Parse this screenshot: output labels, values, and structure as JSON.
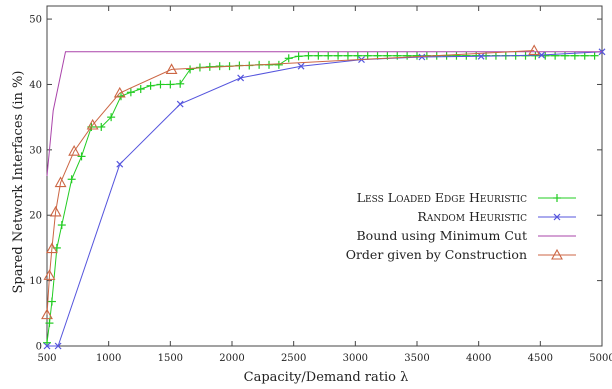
{
  "chart_data": {
    "type": "line",
    "title": "",
    "xlabel": "Capacity/Demand ratio λ",
    "ylabel": "Spared Network Interfaces (in %)",
    "xlim": [
      500,
      5000
    ],
    "ylim": [
      0,
      52
    ],
    "xticks": [
      500,
      1000,
      1500,
      2000,
      2500,
      3000,
      3500,
      4000,
      4500,
      5000
    ],
    "yticks": [
      0,
      10,
      20,
      30,
      40,
      50
    ],
    "grid": false,
    "legend_position": "right",
    "series": [
      {
        "name": "Less Loaded Edge Heuristic",
        "color": "#22cc22",
        "marker": "plus",
        "x": [
          500,
          520,
          540,
          580,
          620,
          700,
          780,
          860,
          940,
          1020,
          1100,
          1180,
          1260,
          1340,
          1420,
          1500,
          1580,
          1660,
          1740,
          1820,
          1900,
          1980,
          2060,
          2140,
          2220,
          2300,
          2380,
          2460,
          2540,
          2620,
          2700,
          2780,
          2860,
          2940,
          3020,
          3100,
          3180,
          3260,
          3340,
          3420,
          3500,
          3580,
          3660,
          3740,
          3820,
          3900,
          3980,
          4060,
          4140,
          4220,
          4300,
          4380,
          4460,
          4540,
          4620,
          4700,
          4780,
          4860,
          4940
        ],
        "values": [
          0.5,
          3.5,
          6.8,
          15,
          18.5,
          25.5,
          29,
          33.5,
          33.5,
          35,
          38.2,
          38.8,
          39.3,
          39.8,
          40,
          40,
          40.1,
          42.3,
          42.6,
          42.7,
          42.8,
          42.8,
          42.9,
          42.9,
          43,
          43,
          43,
          44,
          44.3,
          44.4,
          44.4,
          44.4,
          44.4,
          44.4,
          44.4,
          44.4,
          44.4,
          44.4,
          44.4,
          44.4,
          44.4,
          44.4,
          44.4,
          44.4,
          44.4,
          44.4,
          44.4,
          44.4,
          44.4,
          44.4,
          44.4,
          44.4,
          44.4,
          44.4,
          44.4,
          44.4,
          44.4,
          44.4,
          44.4
        ]
      },
      {
        "name": "Random Heuristic",
        "color": "#5555dd",
        "marker": "cross",
        "x": [
          500,
          590,
          1090,
          1580,
          2070,
          2560,
          3050,
          3540,
          4020,
          4510,
          5000
        ],
        "values": [
          0,
          0,
          27.8,
          37,
          41,
          42.8,
          43.8,
          44.2,
          44.3,
          44.5,
          45
        ]
      },
      {
        "name": "Bound using Minimum Cut",
        "color": "#aa44aa",
        "marker": "none",
        "x": [
          500,
          550,
          650,
          5000
        ],
        "values": [
          26,
          36,
          45,
          45
        ]
      },
      {
        "name": "Order given by Construction",
        "color": "#cc6644",
        "marker": "triangle",
        "x": [
          500,
          520,
          540,
          570,
          610,
          720,
          870,
          1090,
          1510,
          4450
        ],
        "values": [
          4.8,
          10.8,
          14.9,
          20.5,
          25,
          29.8,
          33.8,
          38.7,
          42.3,
          45.2
        ]
      }
    ]
  },
  "colors": {
    "axis": "#444444",
    "background": "#ffffff"
  }
}
